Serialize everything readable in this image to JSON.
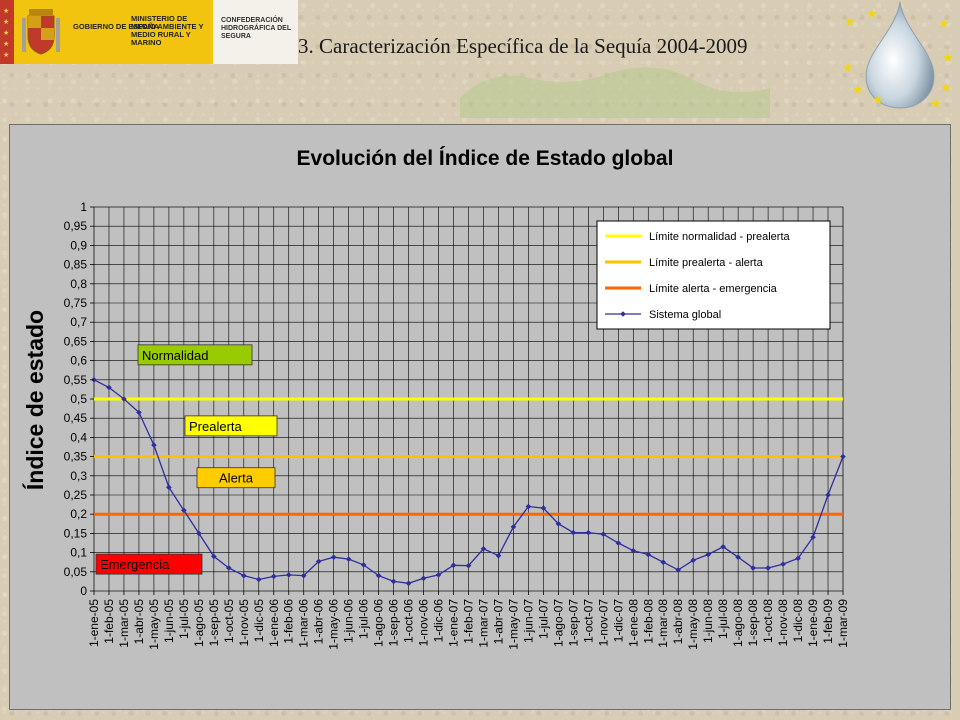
{
  "header": {
    "ministry_org": "GOBIERNO DE ESPAÑA",
    "ministry_name": "MINISTERIO DE MEDIO AMBIENTE Y MEDIO RURAL Y MARINO",
    "confederation": "CONFEDERACIÓN HIDROGRÁFICA DEL SEGURA",
    "slide_title": "3. Caracterización Específica de la Sequía 2004-2009",
    "colors": {
      "gov_yellow": "#f2c40f",
      "gov_red": "#c0392b"
    },
    "icons": [
      "spanish-coat-of-arms",
      "water-drop-with-stars"
    ]
  },
  "chart_data": {
    "type": "line",
    "title": "Evolución del Índice de Estado global",
    "ylabel": "Índice de estado",
    "xlabel": "",
    "ylim": [
      0,
      1
    ],
    "yticks": [
      "0",
      "0,05",
      "0,1",
      "0,15",
      "0,2",
      "0,25",
      "0,3",
      "0,35",
      "0,4",
      "0,45",
      "0,5",
      "0,55",
      "0,6",
      "0,65",
      "0,7",
      "0,75",
      "0,8",
      "0,85",
      "0,9",
      "0,95",
      "1"
    ],
    "grid": true,
    "legend_position": "top-right",
    "categories": [
      "1-ene-05",
      "1-feb-05",
      "1-mar-05",
      "1-abr-05",
      "1-may-05",
      "1-jun-05",
      "1-jul-05",
      "1-ago-05",
      "1-sep-05",
      "1-oct-05",
      "1-nov-05",
      "1-dic-05",
      "1-ene-06",
      "1-feb-06",
      "1-mar-06",
      "1-abr-06",
      "1-may-06",
      "1-jun-06",
      "1-jul-06",
      "1-ago-06",
      "1-sep-06",
      "1-oct-06",
      "1-nov-06",
      "1-dic-06",
      "1-ene-07",
      "1-feb-07",
      "1-mar-07",
      "1-abr-07",
      "1-may-07",
      "1-jun-07",
      "1-jul-07",
      "1-ago-07",
      "1-sep-07",
      "1-oct-07",
      "1-nov-07",
      "1-dic-07",
      "1-ene-08",
      "1-feb-08",
      "1-mar-08",
      "1-abr-08",
      "1-may-08",
      "1-jun-08",
      "1-jul-08",
      "1-ago-08",
      "1-sep-08",
      "1-oct-08",
      "1-nov-08",
      "1-dic-08",
      "1-ene-09",
      "1-feb-09",
      "1-mar-09"
    ],
    "thresholds": [
      {
        "name": "Límite normalidad - prealerta",
        "value": 0.5,
        "color": "#ffff00"
      },
      {
        "name": "Límite prealerta - alerta",
        "value": 0.35,
        "color": "#ffc000"
      },
      {
        "name": "Límite alerta - emergencia",
        "value": 0.2,
        "color": "#ff6600"
      }
    ],
    "series": [
      {
        "name": "Sistema global",
        "color": "#2e2e9e",
        "values": [
          0.55,
          0.53,
          0.5,
          0.465,
          0.38,
          0.27,
          0.21,
          0.15,
          0.09,
          0.06,
          0.04,
          0.03,
          0.038,
          0.042,
          0.04,
          0.077,
          0.088,
          0.083,
          0.068,
          0.04,
          0.025,
          0.02,
          0.033,
          0.042,
          0.067,
          0.066,
          0.11,
          0.092,
          0.167,
          0.22,
          0.216,
          0.175,
          0.152,
          0.152,
          0.148,
          0.125,
          0.105,
          0.095,
          0.075,
          0.055,
          0.08,
          0.095,
          0.115,
          0.088,
          0.06,
          0.06,
          0.07,
          0.085,
          0.14,
          0.25,
          0.35
        ]
      }
    ],
    "zones": [
      {
        "label": "Normalidad",
        "fill": "#99cc00",
        "level": 0.615
      },
      {
        "label": "Prealerta",
        "fill": "#ffff00",
        "level": 0.43
      },
      {
        "label": "Alerta",
        "fill": "#ffcc00",
        "level": 0.295
      },
      {
        "label": "Emergencia",
        "fill": "#ff0000",
        "level": 0.07
      }
    ]
  }
}
